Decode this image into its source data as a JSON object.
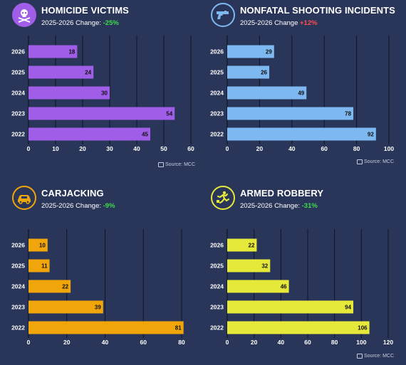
{
  "panels": [
    {
      "title": "HOMICIDE VICTIMS",
      "change_label": "2025-2026 Change:",
      "change_value": "-25%",
      "change_color": "#3ddc4a",
      "icon": "skull-crossbones-icon",
      "accent": "#a05ee8",
      "source": "Source: MCC"
    },
    {
      "title": "NONFATAL SHOOTING INCIDENTS",
      "change_label": "2025-2026 Change",
      "change_value": "+12%",
      "change_color": "#ff4d4d",
      "icon": "handgun-icon",
      "accent": "#7db8f0",
      "source": "Source: MCC"
    },
    {
      "title": "CARJACKING",
      "change_label": "2025-2026 Change:",
      "change_value": "-9%",
      "change_color": "#3ddc4a",
      "icon": "car-icon",
      "accent": "#f0a50a",
      "source": ""
    },
    {
      "title": "ARMED ROBBERY",
      "change_label": "2025-2026 Change:",
      "change_value": "-31%",
      "change_color": "#3ddc4a",
      "icon": "running-robber-icon",
      "accent": "#e6e83a",
      "source": "Source: MCC"
    }
  ],
  "chart_data": [
    {
      "type": "bar",
      "orientation": "horizontal",
      "title": "HOMICIDE VICTIMS",
      "categories": [
        "2026",
        "2025",
        "2024",
        "2023",
        "2022"
      ],
      "values": [
        18,
        24,
        30,
        54,
        45
      ],
      "xlim": [
        0,
        60
      ],
      "ticks": [
        0,
        10,
        20,
        30,
        40,
        50,
        60
      ],
      "bar_color": "#a05ee8",
      "grid": true
    },
    {
      "type": "bar",
      "orientation": "horizontal",
      "title": "NONFATAL SHOOTING INCIDENTS",
      "categories": [
        "2026",
        "2025",
        "2024",
        "2023",
        "2022"
      ],
      "values": [
        29,
        26,
        49,
        78,
        92
      ],
      "xlim": [
        0,
        100
      ],
      "ticks": [
        0,
        20,
        40,
        60,
        80,
        100
      ],
      "bar_color": "#7db8f0",
      "grid": true
    },
    {
      "type": "bar",
      "orientation": "horizontal",
      "title": "CARJACKING",
      "categories": [
        "2026",
        "2025",
        "2024",
        "2023",
        "2022"
      ],
      "values": [
        10,
        11,
        22,
        39,
        81
      ],
      "xlim": [
        0,
        80
      ],
      "ticks": [
        0,
        20,
        40,
        60,
        80
      ],
      "bar_color": "#f0a50a",
      "grid": true
    },
    {
      "type": "bar",
      "orientation": "horizontal",
      "title": "ARMED ROBBERY",
      "categories": [
        "2026",
        "2025",
        "2024",
        "2023",
        "2022"
      ],
      "values": [
        22,
        32,
        46,
        94,
        106
      ],
      "xlim": [
        0,
        120
      ],
      "ticks": [
        0,
        20,
        40,
        60,
        80,
        100,
        120
      ],
      "bar_color": "#e6e83a",
      "grid": true
    }
  ]
}
